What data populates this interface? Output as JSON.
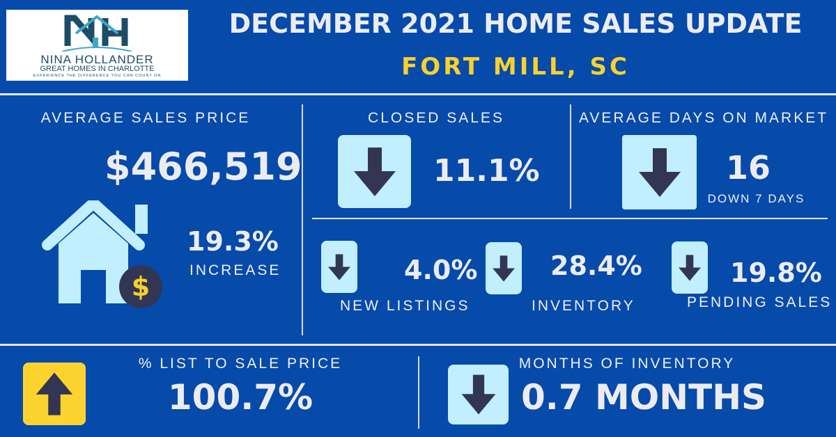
{
  "logo": {
    "name": "NINA HOLLANDER",
    "tagline": "GREAT HOMES IN CHARLOTTE",
    "slogan": "EXPERIENCE THE DIFFERENCE YOU CAN COUNT ON",
    "mark": "NH"
  },
  "header": {
    "title": "DECEMBER 2021 HOME SALES UPDATE",
    "location": "FORT MILL, SC"
  },
  "avg_price": {
    "label": "AVERAGE SALES PRICE",
    "value": "$466,519",
    "change": "19.3%",
    "change_label": "INCREASE"
  },
  "closed_sales": {
    "label": "CLOSED SALES",
    "value": "11.1%",
    "direction": "down"
  },
  "days_on_market": {
    "label": "AVERAGE DAYS ON MARKET",
    "value": "16",
    "sub": "DOWN 7 DAYS",
    "direction": "down"
  },
  "new_listings": {
    "label": "NEW LISTINGS",
    "value": "4.0%",
    "direction": "down"
  },
  "inventory": {
    "label": "INVENTORY",
    "value": "28.4%",
    "direction": "down"
  },
  "pending_sales": {
    "label": "PENDING SALES",
    "value": "19.8%",
    "direction": "down"
  },
  "list_to_sale": {
    "label": "% LIST TO SALE PRICE",
    "value": "100.7%",
    "direction": "up"
  },
  "months_inventory": {
    "label": "MONTHS OF INVENTORY",
    "value": "0.7 MONTHS",
    "direction": "down"
  },
  "colors": {
    "background": "#064aaa",
    "accent": "#f8d12e",
    "box": "#c1effd",
    "arrow": "#333652"
  }
}
